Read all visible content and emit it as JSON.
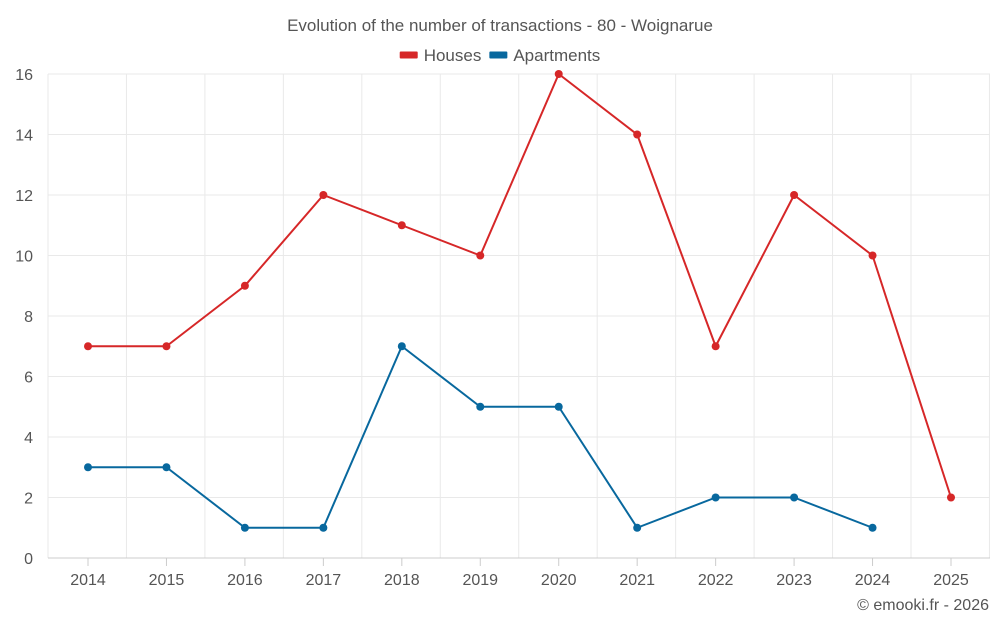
{
  "chart_data": {
    "type": "line",
    "title": "Evolution of the number of transactions - 80 - Woignarue",
    "categories": [
      "2014",
      "2015",
      "2016",
      "2017",
      "2018",
      "2019",
      "2020",
      "2021",
      "2022",
      "2023",
      "2024",
      "2025"
    ],
    "ylim": [
      0,
      16
    ],
    "yticks": [
      0,
      2,
      4,
      6,
      8,
      10,
      12,
      14,
      16
    ],
    "grid": true,
    "legend_position": "top-center",
    "series": [
      {
        "name": "Houses",
        "color": "#d62728",
        "values": [
          7,
          7,
          9,
          12,
          11,
          10,
          16,
          14,
          7,
          12,
          10,
          2
        ]
      },
      {
        "name": "Apartments",
        "color": "#08689e",
        "values": [
          3,
          3,
          1,
          1,
          7,
          5,
          5,
          1,
          2,
          2,
          1,
          null
        ]
      }
    ],
    "credit": "© emooki.fr - 2026"
  }
}
